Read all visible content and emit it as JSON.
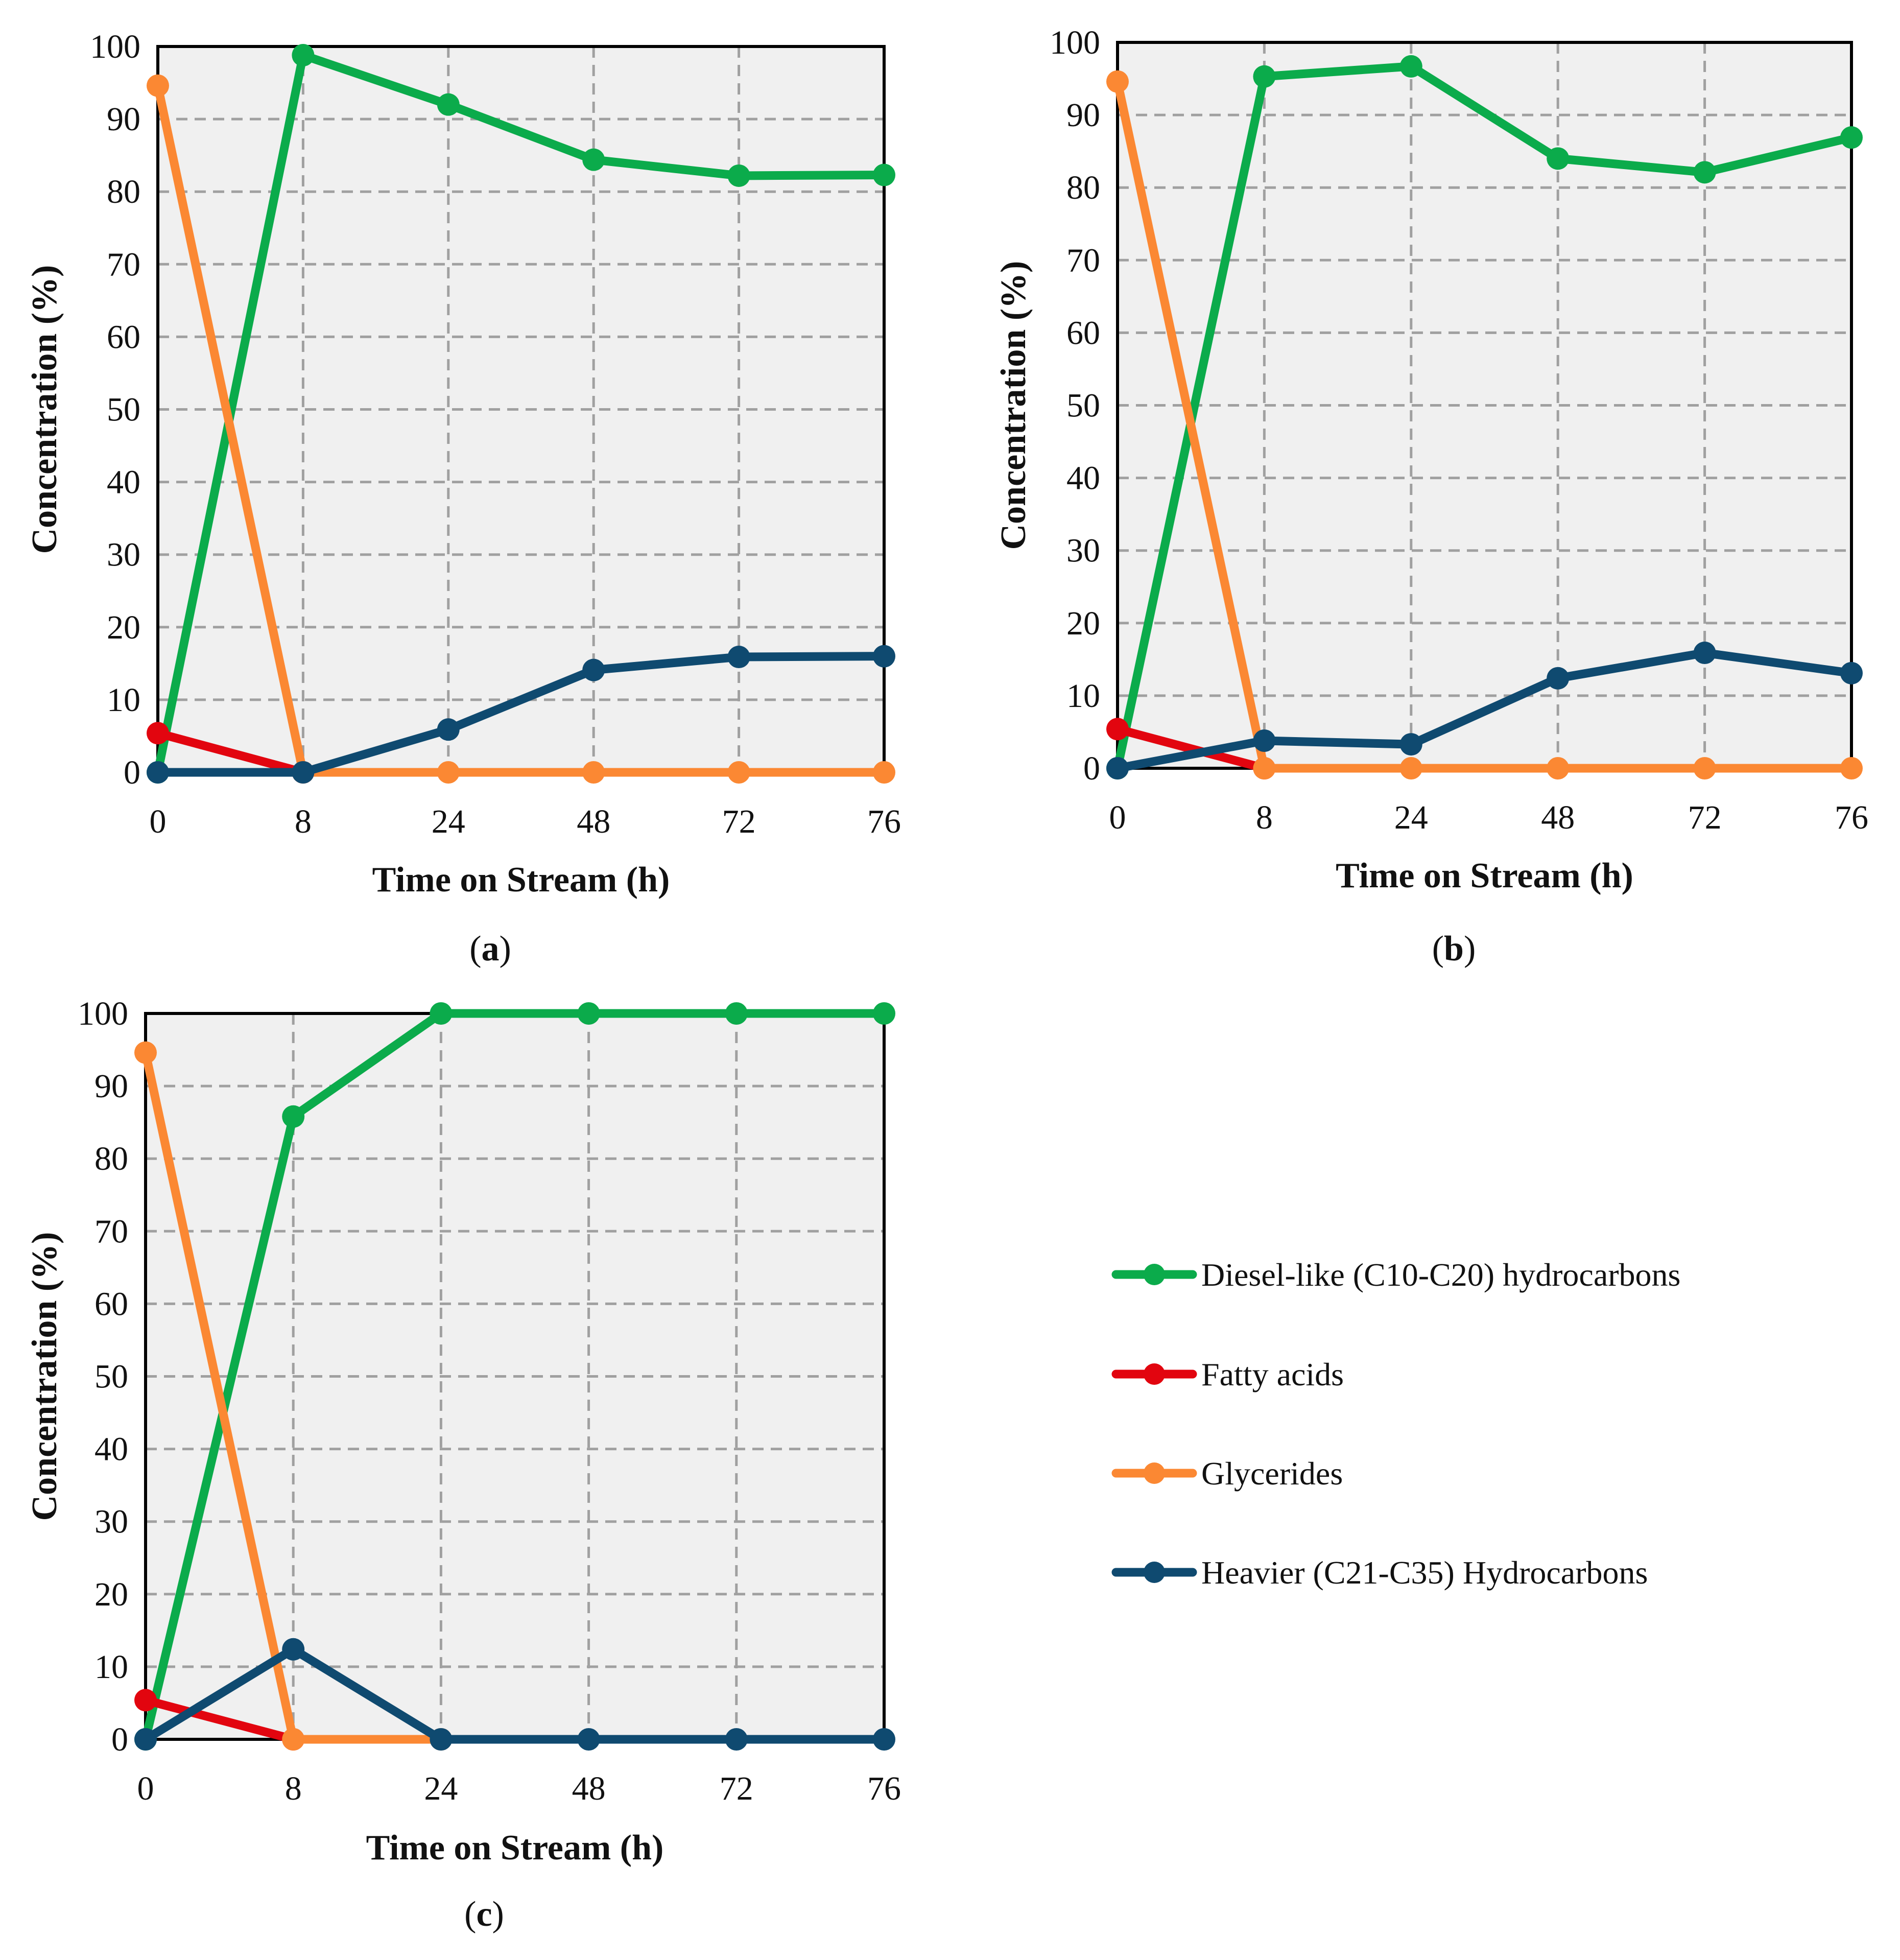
{
  "figure": {
    "series_style": [
      {
        "key": "diesel",
        "label": "Diesel-like (C10-C20) hydrocarbons",
        "color": "#0bab4b"
      },
      {
        "key": "fatty",
        "label": "Fatty acids",
        "color": "#e2050f"
      },
      {
        "key": "glycerides",
        "label": "Glycerides",
        "color": "#fb8833"
      },
      {
        "key": "heavier",
        "label": "Heavier (C21-C35) Hydrocarbons",
        "color": "#0f4a70"
      }
    ],
    "colors": {
      "plot_background": "#f0f0f0",
      "grid": "#a0a0a0",
      "axis": "#000000"
    }
  },
  "chart_data": [
    {
      "type": "line",
      "panel": "a",
      "panel_label_open": "(",
      "panel_label_letter": "a",
      "panel_label_close": ")",
      "xlabel": "Time on Stream (h)",
      "ylabel": "Concentration (%)",
      "categories": [
        "0",
        "8",
        "24",
        "48",
        "72",
        "76"
      ],
      "ylim": [
        0,
        100
      ],
      "yticks": [
        "0",
        "10",
        "20",
        "30",
        "40",
        "50",
        "60",
        "70",
        "80",
        "90",
        "100"
      ],
      "grid": true,
      "series": [
        {
          "name": "Diesel-like (C10-C20) hydrocarbons",
          "values": [
            0,
            98.8,
            92,
            84.4,
            82.2,
            82.3
          ]
        },
        {
          "name": "Fatty acids",
          "values": [
            5.4,
            0,
            null,
            null,
            null,
            null
          ]
        },
        {
          "name": "Glycerides",
          "values": [
            94.6,
            0,
            0,
            0,
            0,
            0
          ]
        },
        {
          "name": "Heavier (C21-C35) Hydrocarbons",
          "values": [
            0,
            0,
            5.9,
            14.1,
            15.9,
            16
          ]
        }
      ]
    },
    {
      "type": "line",
      "panel": "b",
      "panel_label_open": "(",
      "panel_label_letter": "b",
      "panel_label_close": ")",
      "xlabel": "Time on Stream (h)",
      "ylabel": "Concentration (%)",
      "categories": [
        "0",
        "8",
        "24",
        "48",
        "72",
        "76"
      ],
      "ylim": [
        0,
        100
      ],
      "yticks": [
        "0",
        "10",
        "20",
        "30",
        "40",
        "50",
        "60",
        "70",
        "80",
        "90",
        "100"
      ],
      "grid": true,
      "series": [
        {
          "name": "Diesel-like (C10-C20) hydrocarbons",
          "values": [
            0,
            95.3,
            96.7,
            84,
            82.1,
            86.9
          ]
        },
        {
          "name": "Fatty acids",
          "values": [
            5.4,
            0,
            null,
            null,
            null,
            null
          ]
        },
        {
          "name": "Glycerides",
          "values": [
            94.6,
            0,
            0,
            0,
            0,
            0
          ]
        },
        {
          "name": "Heavier (C21-C35) Hydrocarbons",
          "values": [
            0,
            3.8,
            3.3,
            12.4,
            15.9,
            13.1
          ]
        }
      ]
    },
    {
      "type": "line",
      "panel": "c",
      "panel_label_open": "(",
      "panel_label_letter": "c",
      "panel_label_close": ")",
      "xlabel": "Time on Stream (h)",
      "ylabel": "Concentration (%)",
      "categories": [
        "0",
        "8",
        "24",
        "48",
        "72",
        "76"
      ],
      "ylim": [
        0,
        100
      ],
      "yticks": [
        "0",
        "10",
        "20",
        "30",
        "40",
        "50",
        "60",
        "70",
        "80",
        "90",
        "100"
      ],
      "grid": true,
      "series": [
        {
          "name": "Diesel-like (C10-C20) hydrocarbons",
          "values": [
            0,
            85.8,
            100,
            100,
            100,
            100
          ]
        },
        {
          "name": "Fatty acids",
          "values": [
            5.4,
            0,
            null,
            null,
            null,
            null
          ]
        },
        {
          "name": "Glycerides",
          "values": [
            94.6,
            0,
            0,
            null,
            null,
            null
          ]
        },
        {
          "name": "Heavier (C21-C35) Hydrocarbons",
          "values": [
            0,
            12.4,
            0,
            0,
            0,
            0
          ]
        }
      ]
    }
  ],
  "legend": {
    "placement": "bottom-right",
    "items": [
      {
        "label": "Diesel-like (C10-C20) hydrocarbons",
        "color": "#0bab4b"
      },
      {
        "label": "Fatty acids",
        "color": "#e2050f"
      },
      {
        "label": "Glycerides",
        "color": "#fb8833"
      },
      {
        "label": "Heavier (C21-C35) Hydrocarbons",
        "color": "#0f4a70"
      }
    ]
  }
}
